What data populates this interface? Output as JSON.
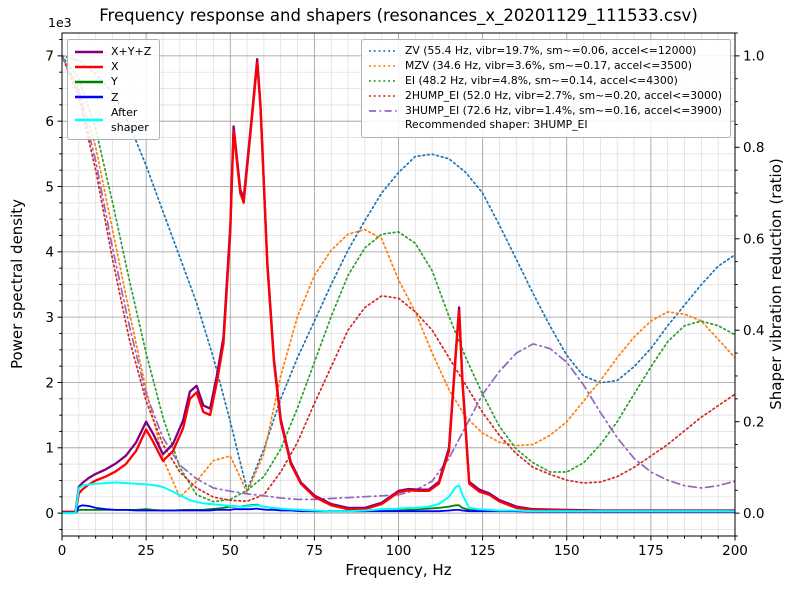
{
  "title": "Frequency response and shapers (resonances_x_20201129_111533.csv)",
  "axes": {
    "x": {
      "label": "Frequency, Hz",
      "min": 0,
      "max": 200,
      "major_ticks": [
        0,
        25,
        50,
        75,
        100,
        125,
        150,
        175,
        200
      ],
      "tick_labels": [
        "0",
        "25",
        "50",
        "75",
        "100",
        "125",
        "150",
        "175",
        "200"
      ],
      "minor_step": 5
    },
    "y_left": {
      "label": "Power spectral density",
      "offset_text": "1e3",
      "min": -0.35,
      "max": 7.35,
      "major_ticks": [
        0,
        1,
        2,
        3,
        4,
        5,
        6,
        7
      ],
      "tick_labels": [
        "0",
        "1",
        "2",
        "3",
        "4",
        "5",
        "6",
        "7"
      ],
      "minor_step": 0.25
    },
    "y_right": {
      "label": "Shaper vibration reduction (ratio)",
      "min": -0.05,
      "max": 1.05,
      "major_ticks": [
        0,
        0.2,
        0.4,
        0.6,
        0.8,
        1.0
      ],
      "tick_labels": [
        "0.0",
        "0.2",
        "0.4",
        "0.6",
        "0.8",
        "1.0"
      ],
      "minor_step": 0.05
    }
  },
  "colors": {
    "grid_major": "#999999",
    "grid_minor": "#dcdcdc",
    "spine": "#000000",
    "text": "#000000",
    "legend_border": "#b0b0b0"
  },
  "chart_data": {
    "type": "line",
    "title": "Frequency response and shapers (resonances_x_20201129_111533.csv)",
    "xlabel": "Frequency, Hz",
    "ylabel_left": "Power spectral density",
    "ylabel_right": "Shaper vibration reduction (ratio)",
    "x_range": [
      0,
      200
    ],
    "y_left_scale": "1e3",
    "grid": "major+minor",
    "legend_note": "Recommended shaper: 3HUMP_EI",
    "psd_x_points": [
      0,
      4,
      5,
      6,
      8,
      10,
      13,
      16,
      19,
      22,
      25,
      27,
      30,
      33,
      36,
      38,
      40,
      42,
      44,
      46,
      48,
      50,
      51,
      53,
      54,
      56,
      58,
      59,
      61,
      63,
      65,
      68,
      71,
      75,
      80,
      85,
      90,
      95,
      100,
      103,
      106,
      109,
      112,
      115,
      117,
      118,
      119,
      121,
      124,
      127,
      130,
      135,
      140,
      150,
      160,
      180,
      200
    ],
    "psd_series": [
      {
        "name": "xyz",
        "label": "X+Y+Z",
        "color": "#800080",
        "width": 2.3,
        "y": [
          0.02,
          0.02,
          0.4,
          0.46,
          0.54,
          0.6,
          0.67,
          0.76,
          0.88,
          1.08,
          1.4,
          1.22,
          0.9,
          1.06,
          1.42,
          1.86,
          1.95,
          1.65,
          1.6,
          2.1,
          2.7,
          4.4,
          5.92,
          4.95,
          4.82,
          5.85,
          6.95,
          6.25,
          3.85,
          2.35,
          1.44,
          0.78,
          0.47,
          0.27,
          0.14,
          0.08,
          0.08,
          0.16,
          0.34,
          0.37,
          0.36,
          0.36,
          0.48,
          1.0,
          2.45,
          3.15,
          2.05,
          0.48,
          0.36,
          0.3,
          0.2,
          0.1,
          0.06,
          0.05,
          0.04,
          0.04,
          0.04
        ]
      },
      {
        "name": "x",
        "label": "X",
        "color": "#ff0000",
        "width": 2.3,
        "y": [
          0.01,
          0.01,
          0.3,
          0.36,
          0.44,
          0.5,
          0.56,
          0.64,
          0.75,
          0.95,
          1.28,
          1.1,
          0.8,
          0.95,
          1.3,
          1.75,
          1.85,
          1.55,
          1.5,
          2.0,
          2.6,
          4.3,
          5.85,
          4.9,
          4.75,
          5.8,
          6.9,
          6.2,
          3.8,
          2.3,
          1.4,
          0.75,
          0.45,
          0.25,
          0.12,
          0.06,
          0.06,
          0.14,
          0.32,
          0.35,
          0.34,
          0.34,
          0.45,
          0.95,
          2.4,
          3.1,
          2.0,
          0.45,
          0.33,
          0.28,
          0.18,
          0.08,
          0.05,
          0.04,
          0.03,
          0.03,
          0.03
        ]
      },
      {
        "name": "y",
        "label": "Y",
        "color": "#008000",
        "width": 1.8,
        "y": [
          0.0,
          0.0,
          0.05,
          0.05,
          0.05,
          0.05,
          0.05,
          0.05,
          0.05,
          0.05,
          0.06,
          0.05,
          0.04,
          0.04,
          0.05,
          0.05,
          0.05,
          0.05,
          0.06,
          0.07,
          0.08,
          0.1,
          0.1,
          0.1,
          0.11,
          0.12,
          0.13,
          0.11,
          0.09,
          0.07,
          0.06,
          0.05,
          0.04,
          0.03,
          0.03,
          0.03,
          0.03,
          0.04,
          0.04,
          0.05,
          0.06,
          0.07,
          0.08,
          0.1,
          0.12,
          0.12,
          0.08,
          0.05,
          0.05,
          0.04,
          0.04,
          0.03,
          0.03,
          0.03,
          0.02,
          0.02,
          0.02
        ]
      },
      {
        "name": "z",
        "label": "Z",
        "color": "#0000ff",
        "width": 1.8,
        "y": [
          0.0,
          0.0,
          0.1,
          0.12,
          0.11,
          0.08,
          0.06,
          0.05,
          0.05,
          0.04,
          0.04,
          0.04,
          0.04,
          0.04,
          0.04,
          0.04,
          0.04,
          0.04,
          0.04,
          0.05,
          0.05,
          0.05,
          0.06,
          0.06,
          0.06,
          0.06,
          0.07,
          0.06,
          0.05,
          0.05,
          0.04,
          0.04,
          0.03,
          0.03,
          0.03,
          0.03,
          0.03,
          0.03,
          0.03,
          0.03,
          0.03,
          0.03,
          0.03,
          0.04,
          0.05,
          0.05,
          0.04,
          0.03,
          0.03,
          0.03,
          0.03,
          0.03,
          0.02,
          0.02,
          0.02,
          0.02,
          0.02
        ]
      },
      {
        "name": "after-shaper",
        "label": "After\nshaper",
        "color": "#00ffff",
        "width": 2.0,
        "y": [
          0.0,
          0.0,
          0.38,
          0.42,
          0.44,
          0.45,
          0.46,
          0.47,
          0.46,
          0.45,
          0.44,
          0.43,
          0.4,
          0.33,
          0.25,
          0.2,
          0.17,
          0.15,
          0.14,
          0.13,
          0.12,
          0.11,
          0.11,
          0.1,
          0.1,
          0.11,
          0.12,
          0.11,
          0.09,
          0.08,
          0.07,
          0.06,
          0.05,
          0.04,
          0.03,
          0.03,
          0.04,
          0.06,
          0.07,
          0.08,
          0.08,
          0.1,
          0.14,
          0.25,
          0.4,
          0.42,
          0.28,
          0.08,
          0.06,
          0.05,
          0.04,
          0.04,
          0.03,
          0.03,
          0.03,
          0.03,
          0.03
        ]
      }
    ],
    "shaper_x": {
      "start": 0,
      "step": 5,
      "count": 41
    },
    "shaper_series": [
      {
        "name": "zv",
        "label": "ZV (55.4 Hz, vibr=19.7%, sm~=0.06, accel<=12000)",
        "color": "#1f77b4",
        "style": "dotted",
        "values": [
          1.0,
          0.99,
          0.96,
          0.92,
          0.85,
          0.76,
          0.66,
          0.56,
          0.46,
          0.34,
          0.2,
          0.05,
          0.14,
          0.25,
          0.34,
          0.42,
          0.5,
          0.575,
          0.64,
          0.7,
          0.745,
          0.78,
          0.785,
          0.775,
          0.745,
          0.7,
          0.63,
          0.555,
          0.48,
          0.41,
          0.345,
          0.3,
          0.285,
          0.29,
          0.32,
          0.36,
          0.41,
          0.455,
          0.5,
          0.54,
          0.565
        ]
      },
      {
        "name": "mzv",
        "label": "MZV (34.6 Hz, vibr=3.6%, sm~=0.17, accel<=3500)",
        "color": "#ff7f0e",
        "style": "dotted",
        "values": [
          1.0,
          0.93,
          0.8,
          0.62,
          0.44,
          0.27,
          0.12,
          0.035,
          0.07,
          0.115,
          0.125,
          0.045,
          0.13,
          0.3,
          0.43,
          0.52,
          0.575,
          0.61,
          0.62,
          0.6,
          0.51,
          0.44,
          0.35,
          0.27,
          0.21,
          0.175,
          0.155,
          0.148,
          0.15,
          0.17,
          0.2,
          0.245,
          0.29,
          0.34,
          0.385,
          0.42,
          0.44,
          0.435,
          0.42,
          0.38,
          0.34
        ]
      },
      {
        "name": "ei",
        "label": "EI (48.2 Hz, vibr=4.8%, sm~=0.14, accel<=4300)",
        "color": "#2ca02c",
        "style": "dotted",
        "values": [
          1.0,
          0.95,
          0.84,
          0.68,
          0.51,
          0.35,
          0.21,
          0.1,
          0.04,
          0.025,
          0.03,
          0.05,
          0.08,
          0.14,
          0.23,
          0.33,
          0.43,
          0.52,
          0.58,
          0.61,
          0.615,
          0.59,
          0.53,
          0.43,
          0.34,
          0.26,
          0.19,
          0.14,
          0.11,
          0.09,
          0.09,
          0.11,
          0.15,
          0.2,
          0.26,
          0.32,
          0.375,
          0.41,
          0.42,
          0.41,
          0.39
        ]
      },
      {
        "name": "2hump_ei",
        "label": "2HUMP_EI (52.0 Hz, vibr=2.7%, sm~=0.20, accel<=3000)",
        "color": "#d62728",
        "style": "dotted",
        "values": [
          1.0,
          0.91,
          0.75,
          0.555,
          0.38,
          0.245,
          0.15,
          0.09,
          0.055,
          0.035,
          0.028,
          0.026,
          0.04,
          0.09,
          0.155,
          0.24,
          0.32,
          0.4,
          0.45,
          0.475,
          0.47,
          0.44,
          0.4,
          0.34,
          0.28,
          0.22,
          0.17,
          0.13,
          0.1,
          0.085,
          0.072,
          0.066,
          0.068,
          0.08,
          0.1,
          0.125,
          0.15,
          0.18,
          0.21,
          0.235,
          0.26
        ]
      },
      {
        "name": "3hump_ei",
        "label": "3HUMP_EI (72.6 Hz, vibr=1.4%, sm~=0.16, accel<=3900)",
        "color": "#9467bd",
        "style": "dashdot",
        "values": [
          1.0,
          0.92,
          0.77,
          0.58,
          0.41,
          0.26,
          0.165,
          0.105,
          0.075,
          0.055,
          0.048,
          0.042,
          0.038,
          0.033,
          0.03,
          0.03,
          0.032,
          0.034,
          0.036,
          0.038,
          0.04,
          0.05,
          0.07,
          0.12,
          0.19,
          0.26,
          0.31,
          0.35,
          0.37,
          0.36,
          0.33,
          0.28,
          0.22,
          0.165,
          0.12,
          0.09,
          0.072,
          0.06,
          0.055,
          0.06,
          0.07
        ]
      }
    ]
  }
}
